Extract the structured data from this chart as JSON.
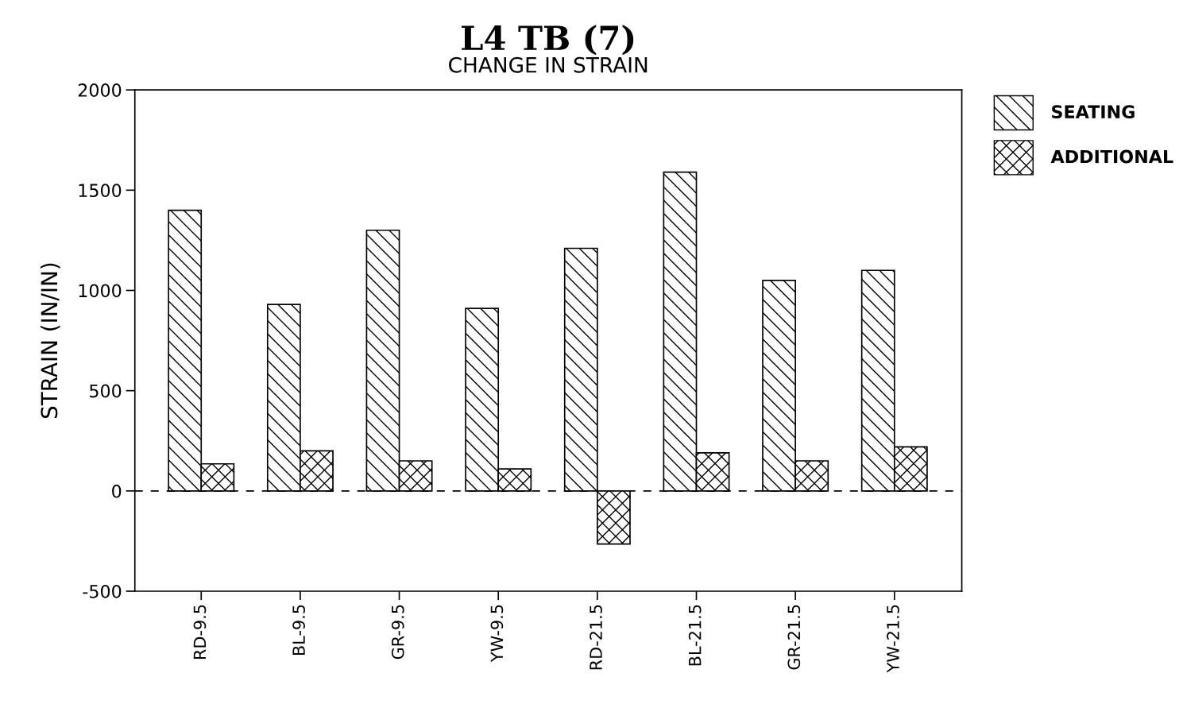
{
  "chart_data": {
    "type": "bar",
    "title": "L4 TB (7)",
    "subtitle": "CHANGE IN STRAIN",
    "ylabel": "STRAIN (IN/IN)",
    "categories": [
      "RD-9.5",
      "BL-9.5",
      "GR-9.5",
      "YW-9.5",
      "RD-21.5",
      "BL-21.5",
      "GR-21.5",
      "YW-21.5"
    ],
    "series": [
      {
        "name": "SEATING",
        "color": "#000000",
        "values": [
          1400,
          930,
          1300,
          910,
          1210,
          1590,
          1050,
          1100
        ]
      },
      {
        "name": "ADDITIONAL",
        "color": "#000000",
        "values": [
          135,
          200,
          150,
          110,
          -265,
          190,
          150,
          220
        ]
      }
    ],
    "ylim": [
      -500,
      2000
    ],
    "yticks": [
      -500,
      0,
      500,
      1000,
      1500,
      2000
    ],
    "ref_lines": [
      {
        "axis": "y",
        "value": 0,
        "color": "#000000",
        "line_style": "dashed"
      }
    ],
    "grid": false,
    "legend": "top right"
  }
}
